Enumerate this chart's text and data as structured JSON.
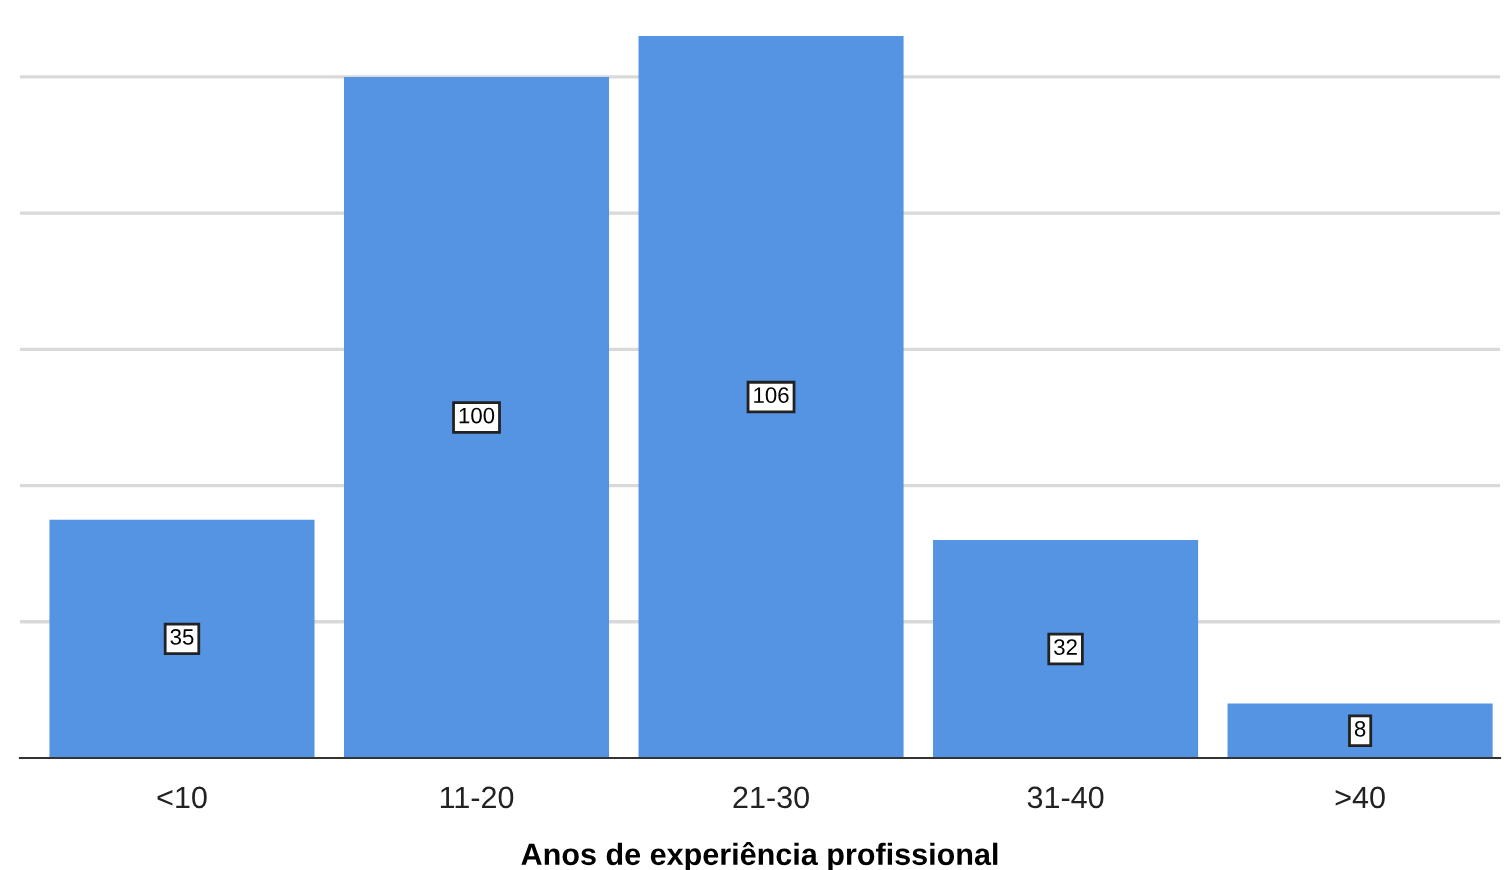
{
  "chart_data": {
    "type": "bar",
    "xlabel": "Anos de experiência profissional",
    "categories": [
      "<10",
      "11-20",
      "21-30",
      "31-40",
      ">40"
    ],
    "values": [
      35,
      100,
      106,
      32,
      8
    ],
    "color": "#5594e3",
    "yticks": [
      {
        "value": 20,
        "label": null
      },
      {
        "value": 40,
        "label": null
      },
      {
        "value": 60,
        "label": null
      },
      {
        "value": 80,
        "label": null
      },
      {
        "value": 100,
        "label": null
      }
    ],
    "grid": "y",
    "tick_labels": "x",
    "data_labels": true
  }
}
